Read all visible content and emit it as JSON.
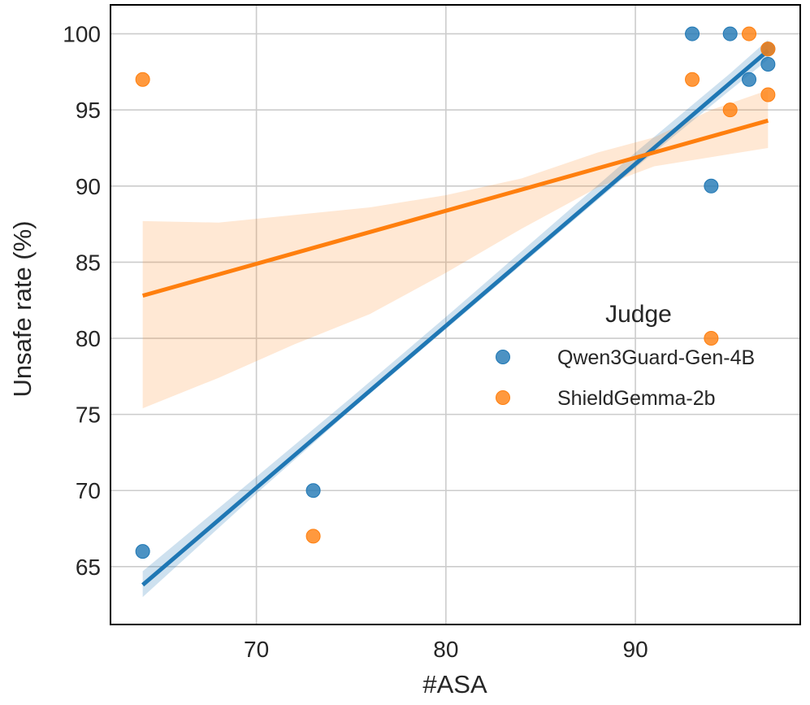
{
  "chart_data": {
    "type": "scatter",
    "title": "",
    "xlabel": "#ASA",
    "ylabel": "Unsafe rate (%)",
    "xlim": [
      62.3,
      98.7
    ],
    "ylim": [
      61.2,
      101.9
    ],
    "xticks": [
      70,
      80,
      90
    ],
    "yticks": [
      65,
      70,
      75,
      80,
      85,
      90,
      95,
      100
    ],
    "grid": true,
    "legend": {
      "title": "Judge",
      "placement": "center-right",
      "entries": [
        "Qwen3Guard-Gen-4B",
        "ShieldGemma-2b"
      ]
    },
    "series": [
      {
        "name": "Qwen3Guard-Gen-4B",
        "color": "#1f77b4",
        "points": [
          {
            "x": 64,
            "y": 66
          },
          {
            "x": 73,
            "y": 70
          },
          {
            "x": 93,
            "y": 100
          },
          {
            "x": 95,
            "y": 100
          },
          {
            "x": 94,
            "y": 90
          },
          {
            "x": 96,
            "y": 97
          },
          {
            "x": 97,
            "y": 99
          },
          {
            "x": 97,
            "y": 98
          }
        ],
        "regression": {
          "x0": 64,
          "y0": 63.8,
          "x1": 97,
          "y1": 98.9
        },
        "ci": [
          {
            "x": 64,
            "lo": 63.0,
            "hi": 64.7
          },
          {
            "x": 70,
            "lo": 69.8,
            "hi": 70.9
          },
          {
            "x": 75,
            "lo": 75.3,
            "hi": 76.1
          },
          {
            "x": 80,
            "lo": 80.6,
            "hi": 81.4
          },
          {
            "x": 85,
            "lo": 85.9,
            "hi": 86.8
          },
          {
            "x": 90,
            "lo": 91.2,
            "hi": 92.2
          },
          {
            "x": 95,
            "lo": 96.3,
            "hi": 97.4
          },
          {
            "x": 97,
            "lo": 98.3,
            "hi": 99.6
          }
        ]
      },
      {
        "name": "ShieldGemma-2b",
        "color": "#ff7f0e",
        "points": [
          {
            "x": 64,
            "y": 97
          },
          {
            "x": 73,
            "y": 67
          },
          {
            "x": 93,
            "y": 97
          },
          {
            "x": 94,
            "y": 80
          },
          {
            "x": 95,
            "y": 95
          },
          {
            "x": 96,
            "y": 100
          },
          {
            "x": 97,
            "y": 99
          },
          {
            "x": 97,
            "y": 96
          }
        ],
        "regression": {
          "x0": 64,
          "y0": 82.8,
          "x1": 97,
          "y1": 94.3
        },
        "ci": [
          {
            "x": 64,
            "lo": 75.4,
            "hi": 87.7
          },
          {
            "x": 68,
            "lo": 77.4,
            "hi": 87.6
          },
          {
            "x": 72,
            "lo": 79.6,
            "hi": 88.1
          },
          {
            "x": 76,
            "lo": 81.6,
            "hi": 88.6
          },
          {
            "x": 80,
            "lo": 84.3,
            "hi": 89.4
          },
          {
            "x": 84,
            "lo": 87.2,
            "hi": 90.5
          },
          {
            "x": 88,
            "lo": 89.9,
            "hi": 92.2
          },
          {
            "x": 91,
            "lo": 91.3,
            "hi": 93.2
          },
          {
            "x": 94,
            "lo": 91.9,
            "hi": 95.0
          },
          {
            "x": 97,
            "lo": 92.5,
            "hi": 96.3
          }
        ]
      }
    ]
  }
}
